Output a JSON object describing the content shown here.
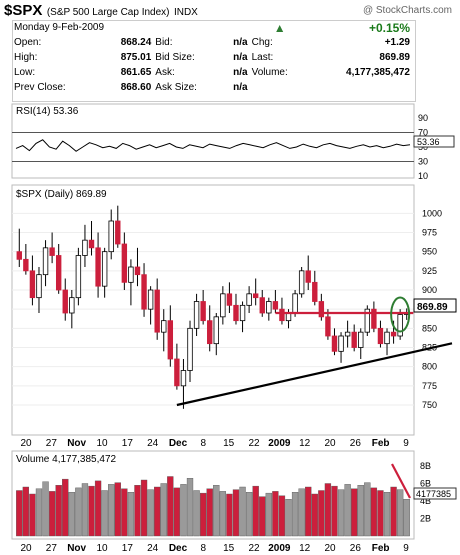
{
  "header": {
    "symbol": "$SPX",
    "name": "(S&P 500 Large Cap Index)",
    "exchange": "INDX",
    "copyright": "@ StockCharts.com",
    "date": "Monday  9-Feb-2009"
  },
  "quote": {
    "open_label": "Open:",
    "open": "868.24",
    "high_label": "High:",
    "high": "875.01",
    "low_label": "Low:",
    "low": "861.65",
    "prev_label": "Prev Close:",
    "prev": "868.60",
    "bid_label": "Bid:",
    "bid": "n/a",
    "bidsize_label": "Bid Size:",
    "bidsize": "n/a",
    "ask_label": "Ask:",
    "ask": "n/a",
    "asksize_label": "Ask Size:",
    "asksize": "n/a",
    "pct_change": "+0.15%",
    "chg_label": "Chg:",
    "chg": "+1.29",
    "last_label": "Last:",
    "last": "869.89",
    "volume_label": "Volume:",
    "volume": "4,177,385,472",
    "up_color": "#2e7d32"
  },
  "chart_data": [
    {
      "type": "line",
      "title": "RSI(14) 53.36",
      "ylim": [
        10,
        90
      ],
      "yticks": [
        90,
        70,
        50,
        30,
        10
      ],
      "last_value_label": "53.36",
      "values": [
        48,
        52,
        45,
        55,
        60,
        50,
        47,
        58,
        52,
        44,
        50,
        56,
        53,
        49,
        51,
        48,
        55,
        52,
        47,
        50,
        53,
        49,
        52,
        55,
        50,
        48,
        53,
        51,
        49,
        54,
        52,
        50,
        48,
        52,
        55,
        53,
        51,
        49,
        53,
        56,
        52,
        48,
        50,
        54,
        51,
        49,
        53,
        55,
        52,
        50,
        48,
        51,
        53,
        50,
        52,
        49,
        51,
        54,
        52,
        53
      ]
    },
    {
      "type": "candlestick",
      "title": "$SPX (Daily) 869.89",
      "ylim": [
        720,
        1020
      ],
      "yticks": [
        1000,
        975,
        950,
        925,
        900,
        875,
        850,
        825,
        800,
        775,
        750
      ],
      "last_value_label": "869.89",
      "x_labels": [
        "20",
        "27",
        "Nov",
        "10",
        "17",
        "24",
        "Dec",
        "8",
        "15",
        "22",
        "2009",
        "12",
        "20",
        "26",
        "Feb",
        "9"
      ],
      "up_color": "#ffffff",
      "down_color": "#cc1f3c",
      "candles": [
        [
          950,
          980,
          930,
          940
        ],
        [
          940,
          960,
          920,
          925
        ],
        [
          925,
          945,
          880,
          890
        ],
        [
          890,
          930,
          870,
          920
        ],
        [
          920,
          965,
          905,
          955
        ],
        [
          955,
          975,
          935,
          945
        ],
        [
          945,
          960,
          895,
          900
        ],
        [
          900,
          915,
          860,
          870
        ],
        [
          870,
          900,
          850,
          890
        ],
        [
          890,
          955,
          880,
          945
        ],
        [
          945,
          985,
          930,
          965
        ],
        [
          965,
          990,
          945,
          955
        ],
        [
          955,
          975,
          890,
          905
        ],
        [
          905,
          955,
          890,
          950
        ],
        [
          950,
          1005,
          940,
          990
        ],
        [
          990,
          1010,
          955,
          960
        ],
        [
          960,
          975,
          900,
          910
        ],
        [
          910,
          940,
          880,
          930
        ],
        [
          930,
          955,
          905,
          920
        ],
        [
          920,
          935,
          865,
          875
        ],
        [
          875,
          905,
          855,
          900
        ],
        [
          900,
          915,
          835,
          845
        ],
        [
          845,
          875,
          820,
          860
        ],
        [
          860,
          880,
          800,
          810
        ],
        [
          810,
          830,
          770,
          775
        ],
        [
          775,
          810,
          745,
          795
        ],
        [
          795,
          860,
          780,
          850
        ],
        [
          850,
          895,
          840,
          885
        ],
        [
          885,
          900,
          855,
          860
        ],
        [
          860,
          880,
          820,
          830
        ],
        [
          830,
          870,
          815,
          865
        ],
        [
          865,
          905,
          855,
          895
        ],
        [
          895,
          910,
          870,
          880
        ],
        [
          880,
          895,
          855,
          860
        ],
        [
          860,
          885,
          845,
          880
        ],
        [
          880,
          905,
          870,
          895
        ],
        [
          895,
          915,
          880,
          890
        ],
        [
          890,
          900,
          865,
          870
        ],
        [
          870,
          890,
          860,
          885
        ],
        [
          885,
          900,
          870,
          875
        ],
        [
          875,
          890,
          855,
          860
        ],
        [
          860,
          875,
          850,
          870
        ],
        [
          870,
          900,
          865,
          895
        ],
        [
          895,
          930,
          890,
          925
        ],
        [
          925,
          945,
          900,
          910
        ],
        [
          910,
          925,
          880,
          885
        ],
        [
          885,
          895,
          860,
          865
        ],
        [
          865,
          875,
          835,
          840
        ],
        [
          840,
          850,
          815,
          820
        ],
        [
          820,
          845,
          805,
          840
        ],
        [
          840,
          860,
          825,
          845
        ],
        [
          845,
          855,
          820,
          825
        ],
        [
          825,
          850,
          810,
          845
        ],
        [
          845,
          880,
          840,
          875
        ],
        [
          875,
          885,
          845,
          850
        ],
        [
          850,
          860,
          825,
          830
        ],
        [
          830,
          850,
          815,
          845
        ],
        [
          845,
          860,
          830,
          840
        ],
        [
          840,
          875,
          835,
          868
        ],
        [
          868,
          876,
          861,
          870
        ]
      ],
      "annotations": [
        {
          "type": "trendline",
          "from": [
            24,
            750
          ],
          "to": [
            62,
            820
          ]
        },
        {
          "type": "resistance",
          "from": [
            39,
            870
          ],
          "to": [
            60,
            870
          ]
        },
        {
          "type": "ellipse",
          "center": [
            58,
            868
          ]
        }
      ]
    },
    {
      "type": "bar",
      "title": "Volume 4,177,385,472",
      "ylim": [
        0,
        8
      ],
      "yticks_labels": [
        "8B",
        "6B",
        "4B",
        "2B"
      ],
      "yticks": [
        8,
        6,
        4,
        2
      ],
      "last_value_label": "4177385",
      "x_labels": [
        "20",
        "27",
        "Nov",
        "10",
        "17",
        "24",
        "Dec",
        "8",
        "15",
        "22",
        "2009",
        "12",
        "20",
        "26",
        "Feb",
        "9"
      ],
      "values": [
        5.2,
        5.6,
        4.8,
        5.4,
        6.2,
        5.1,
        5.8,
        6.5,
        5.0,
        5.5,
        6.0,
        5.7,
        6.3,
        5.2,
        5.9,
        6.1,
        5.4,
        5.0,
        5.8,
        6.4,
        5.3,
        5.6,
        6.0,
        6.8,
        5.5,
        5.9,
        6.6,
        5.2,
        4.9,
        5.4,
        5.8,
        5.1,
        4.8,
        5.3,
        5.6,
        5.0,
        5.7,
        4.5,
        4.9,
        5.1,
        4.6,
        4.2,
        5.0,
        5.4,
        5.6,
        4.8,
        5.2,
        6.0,
        5.7,
        5.3,
        5.9,
        5.4,
        5.8,
        6.1,
        5.5,
        5.2,
        5.0,
        5.6,
        5.3,
        4.2
      ],
      "up_color": "#9a9a9a",
      "down_color": "#cc1f3c"
    }
  ]
}
